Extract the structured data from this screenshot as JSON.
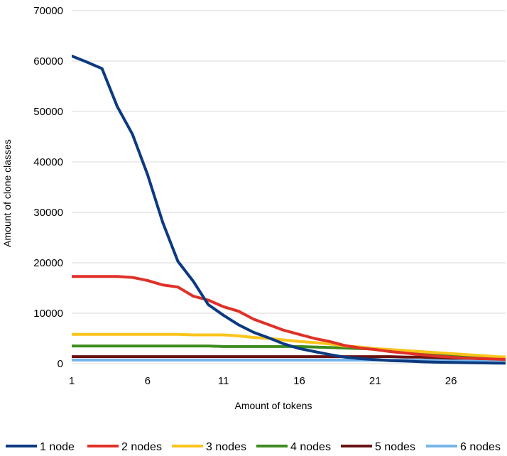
{
  "chart_data": {
    "type": "line",
    "title": "",
    "xlabel": "Amount of tokens",
    "ylabel": "Amount of clone classes",
    "xlim": [
      1,
      29.6
    ],
    "ylim": [
      0,
      70000
    ],
    "x_ticks": [
      1,
      6,
      11,
      16,
      21,
      26
    ],
    "y_ticks": [
      0,
      10000,
      20000,
      30000,
      40000,
      50000,
      60000,
      70000
    ],
    "x": [
      1,
      2,
      3,
      4,
      5,
      6,
      7,
      8,
      9,
      10,
      11,
      12,
      13,
      14,
      15,
      16,
      17,
      18,
      19,
      20,
      21,
      22,
      23,
      24,
      25,
      26,
      27,
      28,
      29,
      30
    ],
    "grid": true,
    "legend_position": "bottom",
    "series": [
      {
        "name": "1 node",
        "color": "#0c3a80",
        "values": [
          61000,
          59800,
          58500,
          51000,
          45500,
          37500,
          28000,
          20300,
          16400,
          11700,
          9600,
          7700,
          6200,
          5100,
          3900,
          3000,
          2400,
          1800,
          1300,
          1000,
          800,
          600,
          500,
          400,
          300,
          250,
          200,
          150,
          100,
          100
        ]
      },
      {
        "name": "2 nodes",
        "color": "#e03127",
        "values": [
          17300,
          17300,
          17300,
          17300,
          17100,
          16500,
          15600,
          15200,
          13400,
          12600,
          11300,
          10400,
          8800,
          7700,
          6600,
          5800,
          5000,
          4400,
          3600,
          3100,
          2800,
          2400,
          2100,
          1800,
          1500,
          1300,
          1100,
          1000,
          900,
          800
        ]
      },
      {
        "name": "3 nodes",
        "color": "#fbc41c",
        "values": [
          5800,
          5800,
          5800,
          5800,
          5800,
          5800,
          5800,
          5800,
          5700,
          5700,
          5700,
          5500,
          5200,
          5000,
          4700,
          4400,
          4200,
          3900,
          3500,
          3300,
          3000,
          2800,
          2600,
          2400,
          2200,
          2000,
          1800,
          1600,
          1400,
          1300
        ]
      },
      {
        "name": "4 nodes",
        "color": "#3e8c1e",
        "values": [
          3500,
          3500,
          3500,
          3500,
          3500,
          3500,
          3500,
          3500,
          3500,
          3500,
          3400,
          3400,
          3400,
          3400,
          3400,
          3400,
          3300,
          3200,
          3100,
          3000,
          2900,
          2700,
          2500,
          2200,
          1900,
          1700,
          1500,
          1300,
          1200,
          1100
        ]
      },
      {
        "name": "5 nodes",
        "color": "#6a1212",
        "values": [
          1400,
          1400,
          1400,
          1400,
          1400,
          1400,
          1400,
          1400,
          1400,
          1400,
          1400,
          1400,
          1400,
          1400,
          1400,
          1400,
          1400,
          1400,
          1400,
          1400,
          1400,
          1400,
          1300,
          1300,
          1200,
          1100,
          1100,
          1000,
          1000,
          1000
        ]
      },
      {
        "name": "6 nodes",
        "color": "#77b5ec",
        "values": [
          700,
          700,
          700,
          700,
          700,
          700,
          700,
          700,
          700,
          700,
          700,
          700,
          700,
          700,
          700,
          700,
          700,
          700,
          700,
          700,
          700,
          700,
          700,
          700,
          700,
          700,
          700,
          700,
          700,
          700
        ]
      }
    ]
  }
}
